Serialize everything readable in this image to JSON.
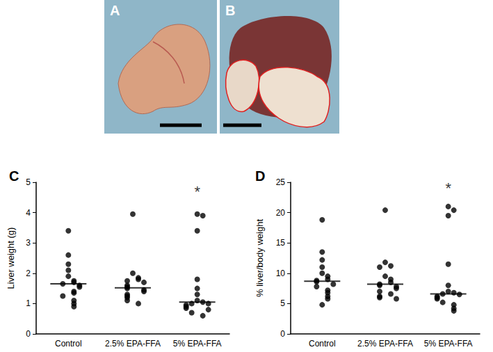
{
  "panels": [
    {
      "label": "A"
    },
    {
      "label": "B"
    }
  ],
  "chart_data": [
    {
      "type": "scatter",
      "title": "C",
      "ylabel": "Liver weight (g)",
      "categories": [
        "Control",
        "2.5% EPA-FFA",
        "5% EPA-FFA"
      ],
      "values": [
        [
          3.4,
          2.6,
          2.3,
          2.1,
          1.9,
          1.75,
          1.7,
          1.65,
          1.6,
          1.55,
          1.4,
          1.35,
          1.25,
          1.1,
          1.0,
          0.9
        ],
        [
          3.95,
          2.0,
          1.85,
          1.8,
          1.75,
          1.7,
          1.6,
          1.55,
          1.5,
          1.45,
          1.4,
          1.3,
          1.25,
          1.2,
          1.1,
          1.0
        ],
        [
          3.95,
          3.9,
          3.4,
          1.8,
          1.5,
          1.3,
          1.1,
          1.05,
          1.0,
          1.0,
          0.95,
          0.9,
          0.85,
          0.8,
          0.7,
          0.6
        ]
      ],
      "medians": [
        1.65,
        1.52,
        1.05
      ],
      "annotations": [
        {
          "text": "*",
          "category": "5% EPA-FFA",
          "y": 4.7
        }
      ],
      "color": "#000000",
      "marker": "circle",
      "ylim": [
        0,
        5
      ],
      "yticks": [
        0,
        1,
        2,
        3,
        4,
        5
      ],
      "grid": false
    },
    {
      "type": "scatter",
      "title": "D",
      "ylabel": "% liver/body weight",
      "categories": [
        "Control",
        "2.5% EPA-FFA",
        "5% EPA-FFA"
      ],
      "values": [
        [
          18.8,
          13.5,
          12.2,
          11.0,
          10.0,
          9.5,
          9.0,
          8.8,
          8.6,
          8.2,
          7.8,
          7.2,
          6.8,
          6.2,
          5.8,
          4.8
        ],
        [
          20.4,
          11.8,
          11.2,
          11.0,
          9.5,
          9.0,
          8.5,
          8.2,
          8.0,
          7.8,
          7.5,
          7.0,
          6.6,
          6.2,
          6.0,
          5.8
        ],
        [
          21.0,
          20.4,
          19.5,
          11.5,
          8.0,
          7.0,
          6.8,
          6.6,
          6.5,
          6.2,
          6.0,
          5.8,
          5.2,
          4.8,
          4.2,
          3.8
        ]
      ],
      "medians": [
        8.7,
        8.2,
        6.6
      ],
      "annotations": [
        {
          "text": "*",
          "category": "5% EPA-FFA",
          "y": 24
        }
      ],
      "color": "#000000",
      "marker": "circle",
      "ylim": [
        0,
        25
      ],
      "yticks": [
        0,
        5,
        10,
        15,
        20,
        25
      ],
      "grid": false
    }
  ]
}
